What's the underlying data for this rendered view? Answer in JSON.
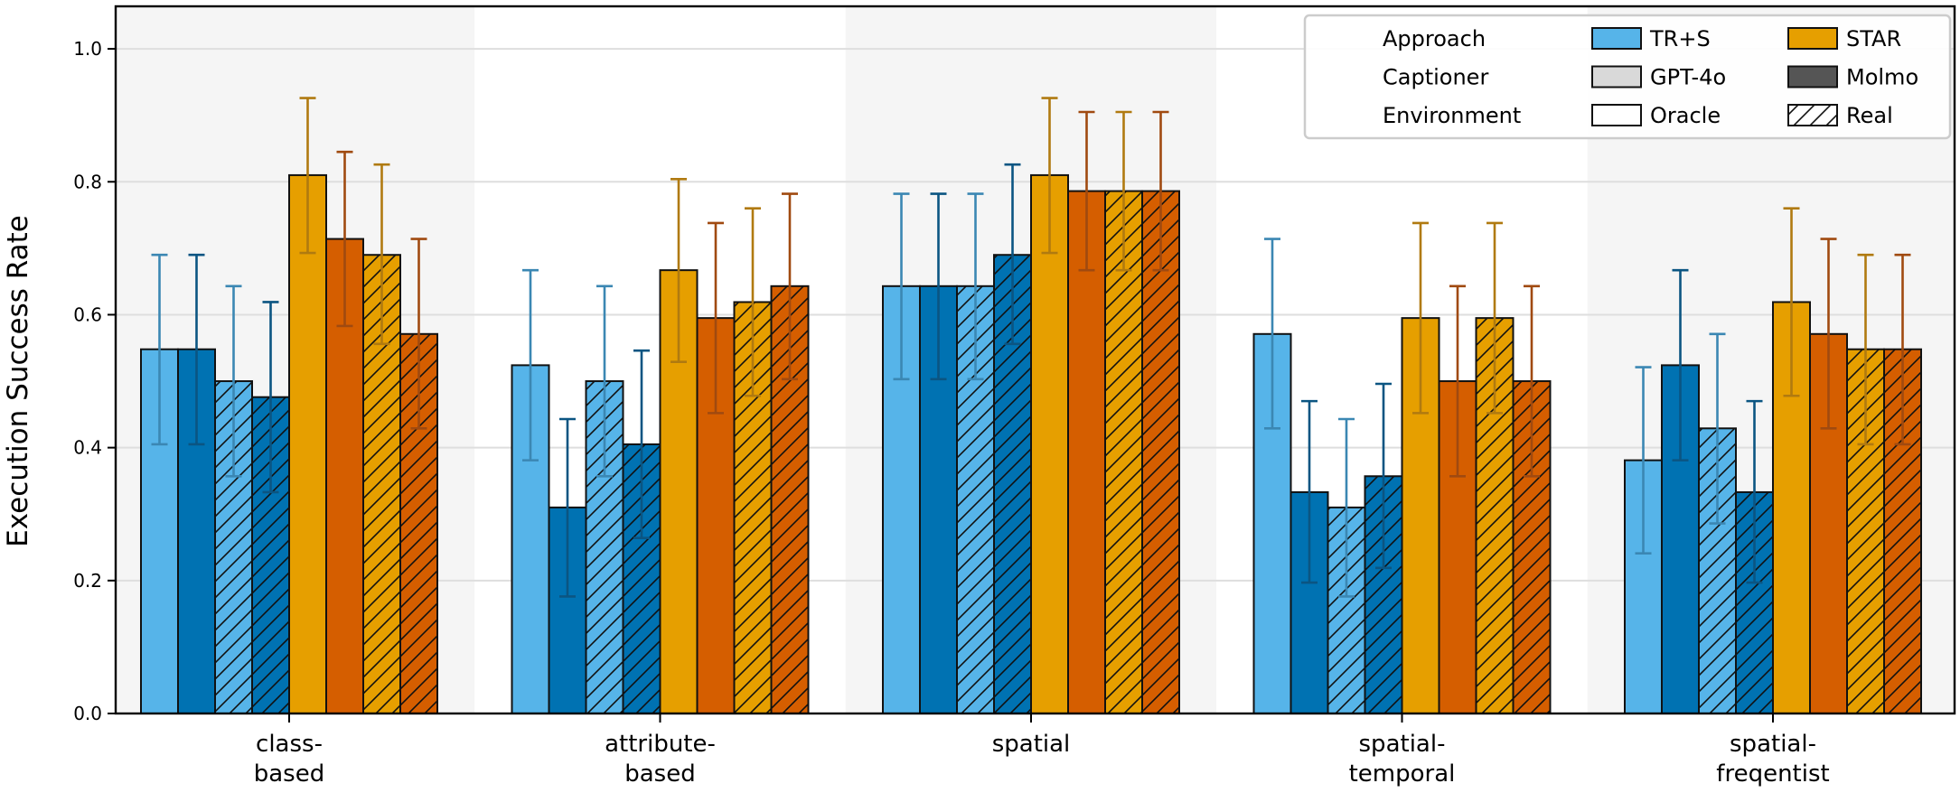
{
  "chart_data": {
    "type": "bar",
    "ylabel": "Execution Success Rate",
    "xlabel": "",
    "ylim": [
      0,
      1.064
    ],
    "yticks": [
      "0.0",
      "0.2",
      "0.4",
      "0.6",
      "0.8",
      "1.0"
    ],
    "grid": true,
    "legend_placement": "top-right",
    "categories": [
      [
        "class-",
        "based"
      ],
      [
        "attribute-",
        "based"
      ],
      [
        "spatial"
      ],
      [
        "spatial-",
        "temporal"
      ],
      [
        "spatial-",
        "freqentist"
      ]
    ],
    "legend": {
      "rows": [
        {
          "title": "Approach",
          "a": "TR+S",
          "b": "STAR"
        },
        {
          "title": "Captioner",
          "a": "GPT-4o",
          "b": "Molmo"
        },
        {
          "title": "Environment",
          "a": "Oracle",
          "b": "Real"
        }
      ],
      "colors": {
        "trs": "#56B4E9",
        "star": "#E69F00",
        "gpt": "#d9d9d9",
        "molmo": "#555555"
      }
    },
    "series": [
      {
        "approach": "TR+S",
        "captioner": "GPT-4o",
        "environment": "Oracle",
        "color": "#56B4E9",
        "err_color": "#3b87b3",
        "values": [
          0.548,
          0.524,
          0.643,
          0.571,
          0.381
        ],
        "err": [
          [
            0.405,
            0.69
          ],
          [
            0.381,
            0.667
          ],
          [
            0.503,
            0.782
          ],
          [
            0.429,
            0.714
          ],
          [
            0.241,
            0.521
          ]
        ]
      },
      {
        "approach": "TR+S",
        "captioner": "Molmo",
        "environment": "Oracle",
        "color": "#0072B2",
        "err_color": "#0b5582",
        "values": [
          0.548,
          0.31,
          0.643,
          0.333,
          0.524
        ],
        "err": [
          [
            0.405,
            0.69
          ],
          [
            0.176,
            0.443
          ],
          [
            0.503,
            0.782
          ],
          [
            0.197,
            0.47
          ],
          [
            0.381,
            0.667
          ]
        ]
      },
      {
        "approach": "TR+S",
        "captioner": "GPT-4o",
        "environment": "Real",
        "color": "#56B4E9",
        "err_color": "#3b87b3",
        "values": [
          0.5,
          0.5,
          0.643,
          0.31,
          0.429
        ],
        "err": [
          [
            0.357,
            0.643
          ],
          [
            0.357,
            0.643
          ],
          [
            0.503,
            0.782
          ],
          [
            0.176,
            0.443
          ],
          [
            0.286,
            0.571
          ]
        ]
      },
      {
        "approach": "TR+S",
        "captioner": "Molmo",
        "environment": "Real",
        "color": "#0072B2",
        "err_color": "#0b5582",
        "values": [
          0.476,
          0.405,
          0.69,
          0.357,
          0.333
        ],
        "err": [
          [
            0.333,
            0.619
          ],
          [
            0.264,
            0.546
          ],
          [
            0.556,
            0.826
          ],
          [
            0.219,
            0.496
          ],
          [
            0.197,
            0.47
          ]
        ]
      },
      {
        "approach": "STAR",
        "captioner": "GPT-4o",
        "environment": "Oracle",
        "color": "#E69F00",
        "err_color": "#b07a10",
        "values": [
          0.81,
          0.667,
          0.81,
          0.595,
          0.619
        ],
        "err": [
          [
            0.693,
            0.926
          ],
          [
            0.529,
            0.804
          ],
          [
            0.693,
            0.926
          ],
          [
            0.452,
            0.738
          ],
          [
            0.478,
            0.76
          ]
        ]
      },
      {
        "approach": "STAR",
        "captioner": "Molmo",
        "environment": "Oracle",
        "color": "#D55E00",
        "err_color": "#a04a10",
        "values": [
          0.714,
          0.595,
          0.786,
          0.5,
          0.571
        ],
        "err": [
          [
            0.583,
            0.845
          ],
          [
            0.452,
            0.738
          ],
          [
            0.667,
            0.905
          ],
          [
            0.357,
            0.643
          ],
          [
            0.429,
            0.714
          ]
        ]
      },
      {
        "approach": "STAR",
        "captioner": "GPT-4o",
        "environment": "Real",
        "color": "#E69F00",
        "err_color": "#b07a10",
        "values": [
          0.69,
          0.619,
          0.786,
          0.595,
          0.548
        ],
        "err": [
          [
            0.556,
            0.826
          ],
          [
            0.478,
            0.76
          ],
          [
            0.667,
            0.905
          ],
          [
            0.452,
            0.738
          ],
          [
            0.405,
            0.69
          ]
        ]
      },
      {
        "approach": "STAR",
        "captioner": "Molmo",
        "environment": "Real",
        "color": "#D55E00",
        "err_color": "#a04a10",
        "values": [
          0.571,
          0.643,
          0.786,
          0.5,
          0.548
        ],
        "err": [
          [
            0.429,
            0.714
          ],
          [
            0.503,
            0.782
          ],
          [
            0.667,
            0.905
          ],
          [
            0.357,
            0.643
          ],
          [
            0.405,
            0.69
          ]
        ]
      }
    ]
  }
}
